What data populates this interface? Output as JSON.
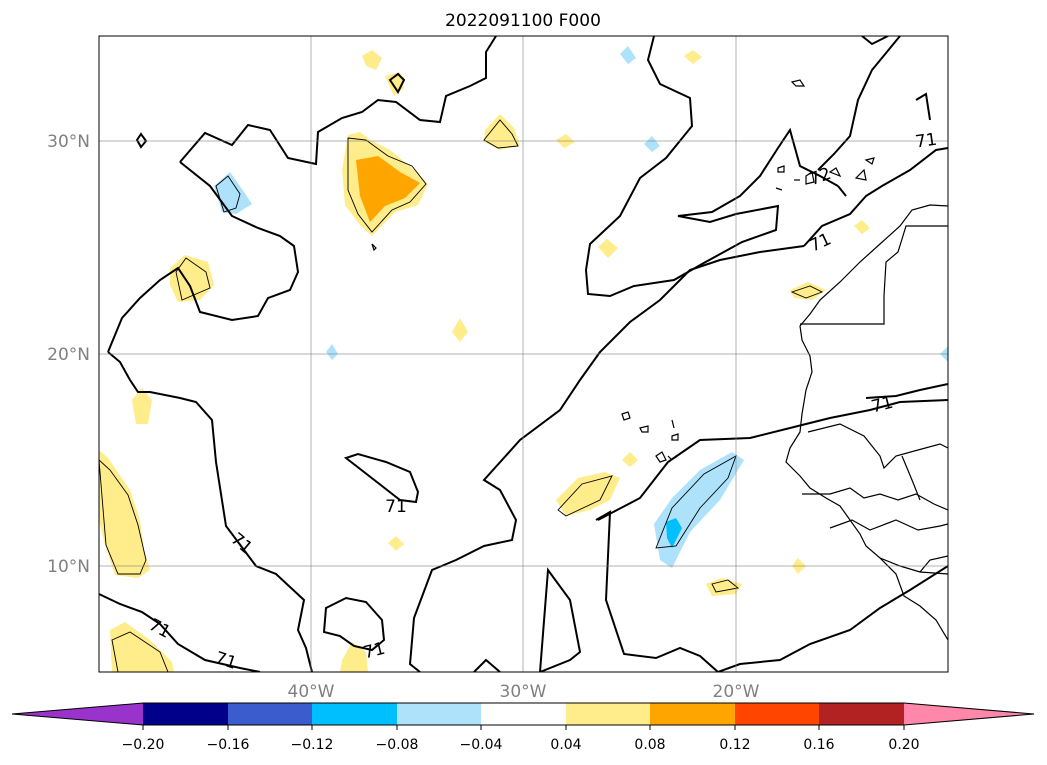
{
  "map": {
    "title": "2022091100 F000",
    "region": "North Atlantic (subtropics) / West Africa",
    "lon_range": [
      -60,
      -20
    ],
    "lat_range": [
      5,
      35
    ],
    "lat_ticks": [
      {
        "value": 30,
        "label": "30°N"
      },
      {
        "value": 20,
        "label": "20°N"
      },
      {
        "value": 10,
        "label": "10°N"
      }
    ],
    "lon_ticks": [
      {
        "value": -40,
        "label": "40°W"
      },
      {
        "value": -30,
        "label": "30°W"
      },
      {
        "value": -20,
        "label": "20°W"
      }
    ],
    "gridlines": true,
    "contour_label": "71",
    "contour_label_72": "72"
  },
  "colorbar": {
    "orientation": "horizontal",
    "extend": "both",
    "tick_labels": [
      "−0.20",
      "−0.16",
      "−0.12",
      "−0.08",
      "−0.04",
      "0.04",
      "0.08",
      "0.12",
      "0.16",
      "0.20"
    ],
    "colors": {
      "under": "#9933cc",
      "n20_16": "#00008b",
      "n16_12": "#3a5ccc",
      "n12_08": "#00bfff",
      "n08_04": "#aee2fa",
      "n04_04": "#ffffff",
      "p04_08": "#ffec8b",
      "p08_12": "#ffa500",
      "p12_16": "#ff4500",
      "p16_20": "#b22222",
      "over": "#ff88aa"
    }
  }
}
